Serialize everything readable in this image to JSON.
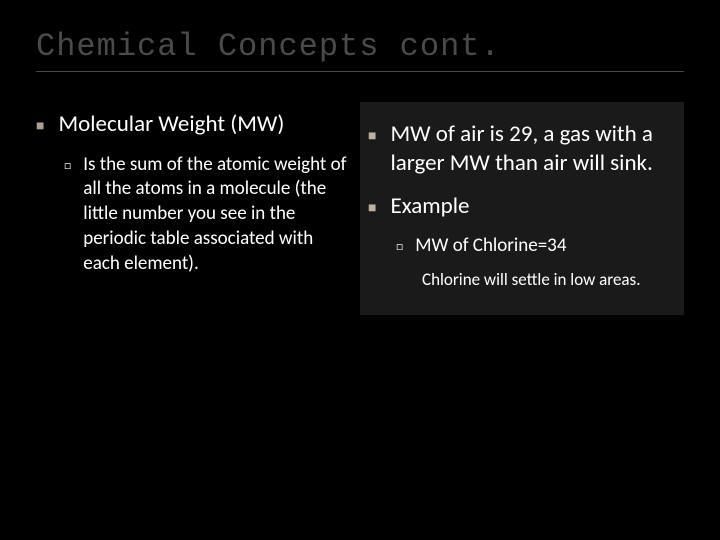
{
  "title": "Chemical Concepts cont.",
  "left": {
    "main": "Molecular Weight (MW)",
    "sub": "Is the sum of the atomic weight of all the atoms in a molecule (the little number you see in the periodic table associated with each element)."
  },
  "right": {
    "main1": "MW of air is 29, a gas with a larger MW than air will sink.",
    "main2": "Example",
    "sub": "MW of Chlorine=34",
    "subsub": "Chlorine will settle in low areas."
  },
  "colors": {
    "background": "#000000",
    "title": "#4a4a4a",
    "text": "#ffffff",
    "bullet_marker": "#b0a090",
    "right_panel_bg": "#1a1a1a"
  }
}
